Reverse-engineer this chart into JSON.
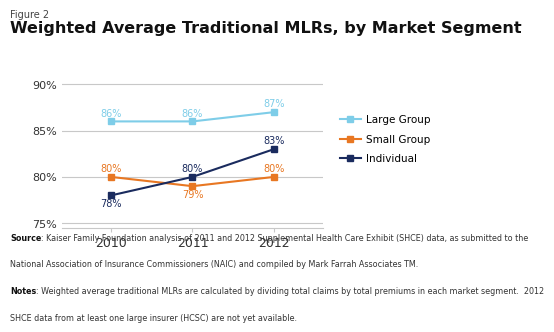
{
  "figure_label": "Figure 2",
  "title": "Weighted Average Traditional MLRs, by Market Segment",
  "years": [
    2010,
    2011,
    2012
  ],
  "large_group": [
    86,
    86,
    87
  ],
  "small_group": [
    80,
    79,
    80
  ],
  "individual": [
    78,
    80,
    83
  ],
  "large_group_color": "#7ecde8",
  "small_group_color": "#e87722",
  "individual_color": "#1a2b5e",
  "ylim": [
    74.5,
    91
  ],
  "yticks": [
    75,
    80,
    85,
    90
  ],
  "ytick_labels": [
    "75%",
    "80%",
    "85%",
    "90%"
  ],
  "background_color": "#ffffff",
  "grid_color": "#c8c8c8",
  "source_lines": [
    [
      "Source",
      ": Kaiser Family Foundation analysis of 2011 and 2012 Supplemental Health Care Exhibit (SHCE) data, as submitted to the"
    ],
    [
      "",
      "National Association of Insurance Commissioners (NAIC) and compiled by Mark Farrah Associates TM."
    ],
    [
      "Notes",
      ": Weighted average traditional MLRs are calculated by dividing total claims by total premiums in each market segment.  2012"
    ],
    [
      "",
      "SHCE data from at least one large insurer (HCSC) are not yet available."
    ]
  ]
}
